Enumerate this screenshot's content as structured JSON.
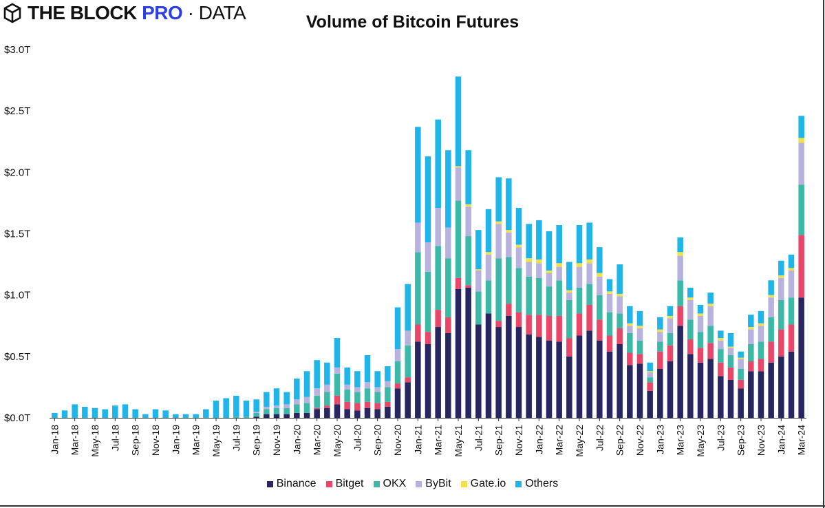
{
  "brand": {
    "name_main": "THE BLOCK ",
    "name_pro": "PRO",
    "name_sep": " · ",
    "name_data": "DATA"
  },
  "colors": {
    "binance": "#282661",
    "bitget": "#e8476a",
    "okx": "#3bb8a6",
    "bybit": "#b7b3de",
    "gateio": "#f2e04c",
    "others": "#1fb5e8",
    "axis": "#333333",
    "brand_pro": "#2c3fe8"
  },
  "chart_data": {
    "type": "bar",
    "stacked": true,
    "title": "Volume of Bitcoin Futures",
    "xlabel": "",
    "ylabel": "",
    "ylim": [
      0,
      3.0
    ],
    "yunit": "trillion USD",
    "yticks": [
      "$0.0T",
      "$0.5T",
      "$1.0T",
      "$1.5T",
      "$2.0T",
      "$2.5T",
      "$3.0T"
    ],
    "grid": false,
    "legend_position": "bottom",
    "categories": [
      "Jan-18",
      "Feb-18",
      "Mar-18",
      "Apr-18",
      "May-18",
      "Jun-18",
      "Jul-18",
      "Aug-18",
      "Sep-18",
      "Oct-18",
      "Nov-18",
      "Dec-18",
      "Jan-19",
      "Feb-19",
      "Mar-19",
      "Apr-19",
      "May-19",
      "Jun-19",
      "Jul-19",
      "Aug-19",
      "Sep-19",
      "Oct-19",
      "Nov-19",
      "Dec-19",
      "Jan-20",
      "Feb-20",
      "Mar-20",
      "Apr-20",
      "May-20",
      "Jun-20",
      "Jul-20",
      "Aug-20",
      "Sep-20",
      "Oct-20",
      "Nov-20",
      "Dec-20",
      "Jan-21",
      "Feb-21",
      "Mar-21",
      "Apr-21",
      "May-21",
      "Jun-21",
      "Jul-21",
      "Aug-21",
      "Sep-21",
      "Oct-21",
      "Nov-21",
      "Dec-21",
      "Jan-22",
      "Feb-22",
      "Mar-22",
      "Apr-22",
      "May-22",
      "Jun-22",
      "Jul-22",
      "Aug-22",
      "Sep-22",
      "Oct-22",
      "Nov-22",
      "Dec-22",
      "Jan-23",
      "Feb-23",
      "Mar-23",
      "Apr-23",
      "May-23",
      "Jun-23",
      "Jul-23",
      "Aug-23",
      "Sep-23",
      "Oct-23",
      "Nov-23",
      "Dec-23",
      "Jan-24",
      "Feb-24",
      "Mar-24"
    ],
    "xticks": [
      "Jan-18",
      "Mar-18",
      "May-18",
      "Jul-18",
      "Sep-18",
      "Nov-18",
      "Jan-19",
      "Mar-19",
      "May-19",
      "Jul-19",
      "Sep-19",
      "Nov-19",
      "Jan-20",
      "Mar-20",
      "May-20",
      "Jul-20",
      "Sep-20",
      "Nov-20",
      "Jan-21",
      "Mar-21",
      "May-21",
      "Jul-21",
      "Sep-21",
      "Nov-21",
      "Jan-22",
      "Mar-22",
      "May-22",
      "Jul-22",
      "Sep-22",
      "Nov-22",
      "Jan-23",
      "Mar-23",
      "May-23",
      "Jul-23",
      "Sep-23",
      "Nov-23",
      "Jan-24",
      "Mar-24"
    ],
    "series": [
      {
        "name": "Binance",
        "key": "binance",
        "values": [
          0,
          0,
          0,
          0,
          0,
          0,
          0,
          0,
          0,
          0,
          0,
          0,
          0,
          0,
          0,
          0,
          0,
          0,
          0,
          0,
          0.01,
          0.03,
          0.03,
          0.03,
          0.04,
          0.04,
          0.07,
          0.08,
          0.11,
          0.07,
          0.06,
          0.08,
          0.07,
          0.09,
          0.24,
          0.29,
          0.62,
          0.6,
          0.74,
          0.69,
          1.05,
          1.06,
          0.76,
          0.85,
          0.74,
          0.83,
          0.74,
          0.68,
          0.66,
          0.63,
          0.62,
          0.5,
          0.67,
          0.71,
          0.63,
          0.54,
          0.6,
          0.43,
          0.44,
          0.22,
          0.4,
          0.46,
          0.75,
          0.52,
          0.45,
          0.48,
          0.34,
          0.31,
          0.24,
          0.38,
          0.38,
          0.45,
          0.5,
          0.54,
          0.98
        ]
      },
      {
        "name": "Bitget",
        "key": "bitget",
        "values": [
          0,
          0,
          0,
          0,
          0,
          0,
          0,
          0,
          0,
          0,
          0,
          0,
          0,
          0,
          0,
          0,
          0,
          0,
          0,
          0,
          0,
          0,
          0,
          0,
          0,
          0,
          0.01,
          0.02,
          0.07,
          0.06,
          0.06,
          0.05,
          0.05,
          0.04,
          0.04,
          0.04,
          0.14,
          0.1,
          0.14,
          0.13,
          0.09,
          0.02,
          0,
          0,
          0.05,
          0.1,
          0.12,
          0.16,
          0.18,
          0.2,
          0.21,
          0.15,
          0.18,
          0.21,
          0.17,
          0.13,
          0.13,
          0.1,
          0.08,
          0.07,
          0.14,
          0.13,
          0.16,
          0.12,
          0.12,
          0.13,
          0.11,
          0.1,
          0.07,
          0.08,
          0.1,
          0.17,
          0.22,
          0.22,
          0.51
        ]
      },
      {
        "name": "OKX",
        "key": "okx",
        "values": [
          0,
          0,
          0,
          0,
          0,
          0,
          0,
          0,
          0,
          0,
          0,
          0,
          0,
          0,
          0,
          0,
          0,
          0,
          0.01,
          0.01,
          0.03,
          0.04,
          0.05,
          0.05,
          0.07,
          0.08,
          0.1,
          0.11,
          0.18,
          0.1,
          0.09,
          0.11,
          0.09,
          0.12,
          0.18,
          0.26,
          0.59,
          0.49,
          0.52,
          0.48,
          0.63,
          0.4,
          0.27,
          0.27,
          0.51,
          0.38,
          0.36,
          0.31,
          0.3,
          0.24,
          0.29,
          0.31,
          0.21,
          0.17,
          0.2,
          0.19,
          0.12,
          0.16,
          0.11,
          0.04,
          0.08,
          0.1,
          0.21,
          0.16,
          0.13,
          0.14,
          0.11,
          0.1,
          0.09,
          0.14,
          0.14,
          0.2,
          0.24,
          0.22,
          0.41
        ]
      },
      {
        "name": "ByBit",
        "key": "bybit",
        "values": [
          0,
          0,
          0,
          0,
          0,
          0,
          0,
          0,
          0,
          0,
          0,
          0,
          0,
          0,
          0,
          0,
          0,
          0,
          0,
          0,
          0.01,
          0.02,
          0.02,
          0.03,
          0.04,
          0.05,
          0.06,
          0.06,
          0.05,
          0.04,
          0.04,
          0.05,
          0.04,
          0.05,
          0.1,
          0.12,
          0.24,
          0.24,
          0.31,
          0.25,
          0.27,
          0.24,
          0.17,
          0.21,
          0.28,
          0.2,
          0.17,
          0.12,
          0.12,
          0.11,
          0.11,
          0.06,
          0.17,
          0.17,
          0.15,
          0.15,
          0.14,
          0.06,
          0.1,
          0.04,
          0.08,
          0.12,
          0.2,
          0.16,
          0.13,
          0.16,
          0.07,
          0.06,
          0.08,
          0.12,
          0.13,
          0.16,
          0.18,
          0.22,
          0.34
        ]
      },
      {
        "name": "Gate.io",
        "key": "gateio",
        "values": [
          0,
          0,
          0,
          0,
          0,
          0,
          0,
          0,
          0,
          0,
          0,
          0,
          0,
          0,
          0,
          0,
          0,
          0,
          0,
          0,
          0,
          0,
          0,
          0,
          0,
          0,
          0,
          0,
          0,
          0,
          0,
          0,
          0,
          0,
          0,
          0,
          0,
          0,
          0,
          0,
          0.01,
          0.02,
          0.01,
          0.02,
          0.02,
          0.02,
          0.02,
          0.03,
          0.03,
          0.02,
          0.03,
          0.02,
          0.03,
          0.03,
          0.03,
          0.02,
          0.02,
          0.02,
          0.02,
          0.01,
          0.02,
          0.02,
          0.03,
          0.02,
          0.02,
          0.02,
          0.02,
          0.01,
          0.01,
          0.02,
          0.02,
          0.02,
          0.02,
          0.02,
          0.04
        ]
      },
      {
        "name": "Others",
        "key": "others",
        "values": [
          0.04,
          0.06,
          0.11,
          0.09,
          0.08,
          0.07,
          0.1,
          0.11,
          0.07,
          0.03,
          0.07,
          0.06,
          0.03,
          0.03,
          0.03,
          0.07,
          0.14,
          0.16,
          0.17,
          0.13,
          0.1,
          0.12,
          0.14,
          0.1,
          0.17,
          0.21,
          0.23,
          0.18,
          0.24,
          0.14,
          0.13,
          0.22,
          0.13,
          0.12,
          0.34,
          0.38,
          0.78,
          0.7,
          0.72,
          0.63,
          0.73,
          0.44,
          0.32,
          0.35,
          0.36,
          0.42,
          0.3,
          0.28,
          0.32,
          0.32,
          0.31,
          0.23,
          0.31,
          0.3,
          0.21,
          0.1,
          0.24,
          0.14,
          0.12,
          0.07,
          0.1,
          0.08,
          0.12,
          0.08,
          0.07,
          0.09,
          0.06,
          0.11,
          0.05,
          0.1,
          0.1,
          0.12,
          0.12,
          0.11,
          0.18
        ]
      }
    ]
  }
}
